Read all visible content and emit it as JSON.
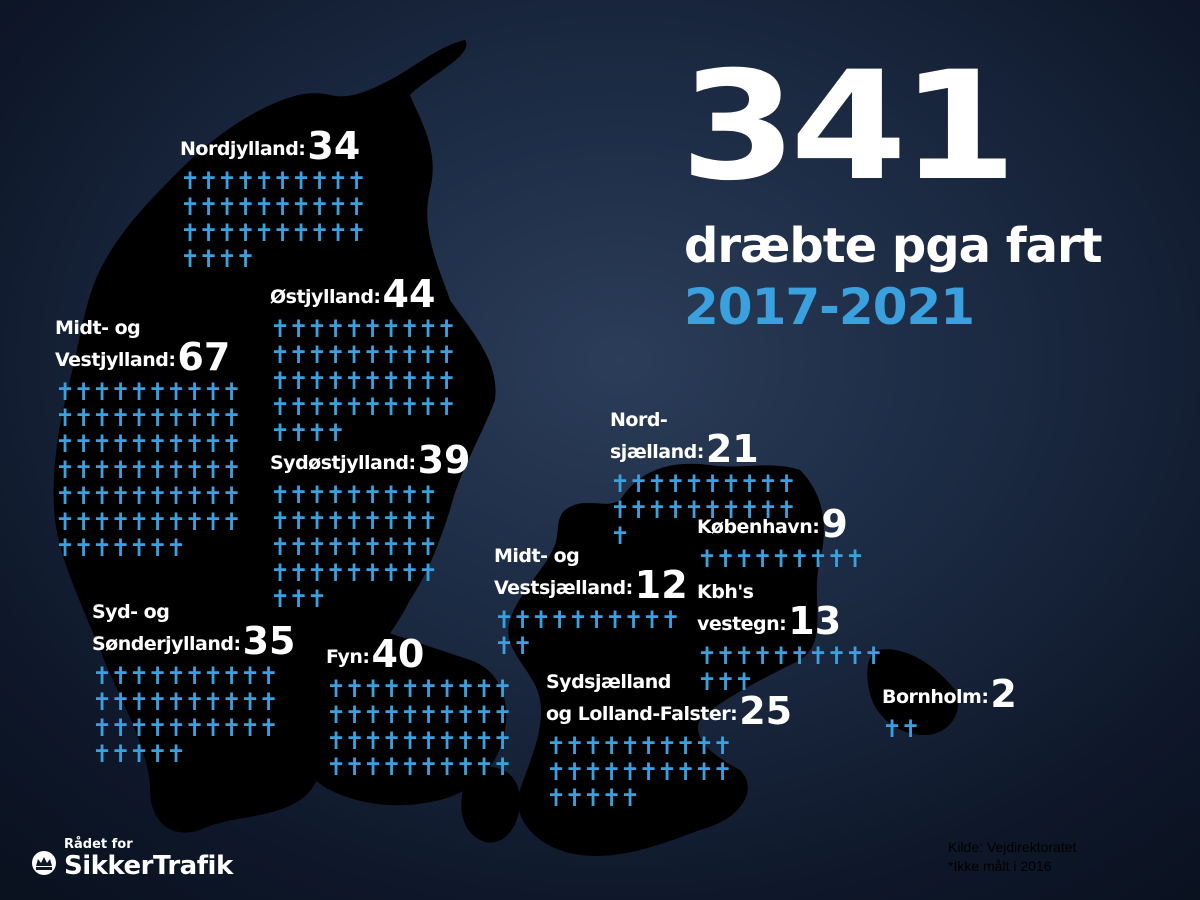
{
  "headline": {
    "total": "341",
    "subtitle": "dræbte pga fart",
    "period": "2017-2021"
  },
  "chart_data": {
    "type": "pictogram",
    "total": 341,
    "unit_symbol": "cross",
    "regions": [
      {
        "id": "nordjylland",
        "label": "Nordjylland:",
        "value": 34
      },
      {
        "id": "ostjylland",
        "label": "Østjylland:",
        "value": 44
      },
      {
        "id": "midtvest",
        "label": "Midt- og\nVestjylland:",
        "value": 67
      },
      {
        "id": "sydostjylland",
        "label": "Sydøstjylland:",
        "value": 39
      },
      {
        "id": "sydsonder",
        "label": "Syd- og\nSønderjylland:",
        "value": 35
      },
      {
        "id": "fyn",
        "label": "Fyn:",
        "value": 40
      },
      {
        "id": "nordsjaelland",
        "label": "Nord-\nsjælland:",
        "value": 21
      },
      {
        "id": "kobenhavn",
        "label": "København:",
        "value": 9
      },
      {
        "id": "midtvestsjaelland",
        "label": "Midt- og\nVestsjælland:",
        "value": 12
      },
      {
        "id": "kbhvestegn",
        "label": "Kbh's\nvestegn:",
        "value": 13
      },
      {
        "id": "sydsjaelland",
        "label": "Sydsjælland\nog Lolland-Falster:",
        "value": 25
      },
      {
        "id": "bornholm",
        "label": "Bornholm:",
        "value": 2
      }
    ]
  },
  "source": {
    "line1": "Kilde: Vejdirektoratet",
    "line2": "*Ikke målt i 2016"
  },
  "logo": {
    "line1": "Rådet for",
    "line2": "SikkerTrafik"
  },
  "colors": {
    "accent": "#3aa0de",
    "land": "#000000",
    "text": "#ffffff"
  }
}
